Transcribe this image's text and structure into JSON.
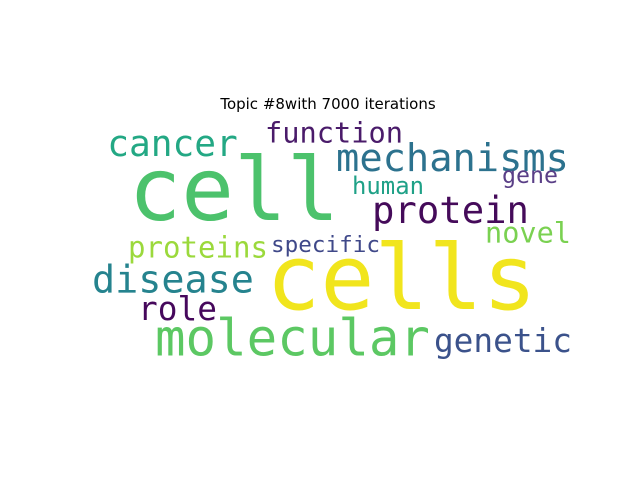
{
  "chart_data": {
    "type": "wordcloud",
    "title": "Topic #8with 7000 iterations",
    "words": [
      {
        "text": "cell",
        "color": "#4cc26c"
      },
      {
        "text": "cells",
        "color": "#f1e51d"
      },
      {
        "text": "molecular",
        "color": "#5cc863"
      },
      {
        "text": "mechanisms",
        "color": "#2c728e"
      },
      {
        "text": "cancer",
        "color": "#23a884"
      },
      {
        "text": "protein",
        "color": "#450b5a"
      },
      {
        "text": "disease",
        "color": "#25838e"
      },
      {
        "text": "function",
        "color": "#4a1b6a"
      },
      {
        "text": "genetic",
        "color": "#3b528b"
      },
      {
        "text": "novel",
        "color": "#7ad151"
      },
      {
        "text": "proteins",
        "color": "#9bd93c"
      },
      {
        "text": "role",
        "color": "#46085c"
      },
      {
        "text": "specific",
        "color": "#3f4889"
      },
      {
        "text": "human",
        "color": "#1fa187"
      },
      {
        "text": "gene",
        "color": "#5a3f87"
      }
    ]
  }
}
